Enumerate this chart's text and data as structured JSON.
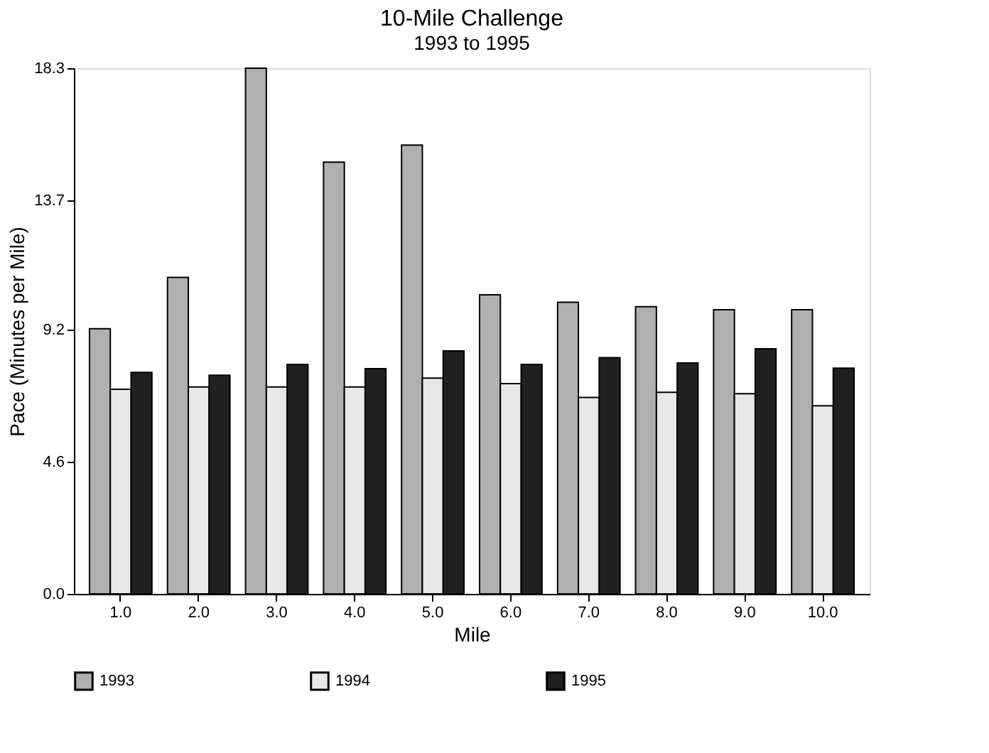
{
  "chart_data": {
    "type": "bar",
    "title": "10-Mile Challenge",
    "subtitle": "1993 to 1995",
    "xlabel": "Mile",
    "ylabel": "Pace (Minutes per Mile)",
    "categories": [
      "1.0",
      "2.0",
      "3.0",
      "4.0",
      "5.0",
      "6.0",
      "7.0",
      "8.0",
      "9.0",
      "10.0"
    ],
    "series": [
      {
        "name": "1993",
        "color": "#b0b0b0",
        "values": [
          9.23,
          11.02,
          18.3,
          15.03,
          15.62,
          10.41,
          10.15,
          10.0,
          9.89,
          9.89
        ]
      },
      {
        "name": "1994",
        "color": "#e8e8e8",
        "values": [
          7.12,
          7.2,
          7.2,
          7.2,
          7.51,
          7.32,
          6.84,
          7.02,
          6.97,
          6.55
        ]
      },
      {
        "name": "1995",
        "color": "#202020",
        "values": [
          7.71,
          7.61,
          7.99,
          7.84,
          8.46,
          7.99,
          8.22,
          8.04,
          8.53,
          7.86
        ]
      }
    ],
    "ylim": [
      0,
      18.3
    ],
    "yticks": [
      {
        "value": 0,
        "label": "0.0"
      },
      4.6,
      9.2,
      13.7,
      18.3
    ],
    "grid": false,
    "legend": "bottom"
  }
}
